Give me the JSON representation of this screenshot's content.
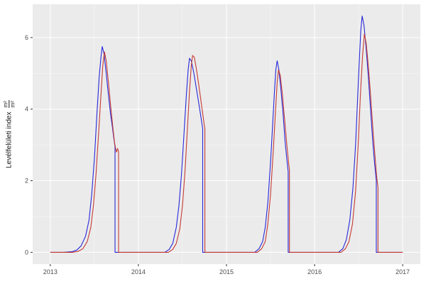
{
  "chart_data": {
    "type": "line",
    "title": "",
    "xlabel": "",
    "ylabel_text": "Levélfelületi index",
    "ylabel_frac_num": "m²",
    "ylabel_frac_den": "m²",
    "legend": "none",
    "grid": true,
    "xlim": [
      2012.8,
      2017.2
    ],
    "ylim": [
      -0.33,
      6.93
    ],
    "x_ticks": [
      2013,
      2014,
      2015,
      2016,
      2017
    ],
    "x_tick_labels": [
      "2013",
      "2014",
      "2015",
      "2016",
      "2017"
    ],
    "x_minor": [
      2013.5,
      2014.5,
      2015.5,
      2016.5
    ],
    "y_ticks": [
      0,
      2,
      4,
      6
    ],
    "y_tick_labels": [
      "0",
      "2",
      "4",
      "6"
    ],
    "y_minor": [
      1,
      3,
      5
    ],
    "colors": {
      "panel": "#ebebeb",
      "grid_major": "#ffffff",
      "grid_minor": "#f7f7f7",
      "tick_text": "#4d4d4d",
      "tick_mark": "#333333",
      "axis_title": "#1a1a1a",
      "background": "#ffffff"
    },
    "series": [
      {
        "name": "series-blue",
        "color": "#2727d8",
        "points": [
          [
            2013.0,
            0
          ],
          [
            2013.15,
            0
          ],
          [
            2013.25,
            0.02
          ],
          [
            2013.3,
            0.06
          ],
          [
            2013.35,
            0.18
          ],
          [
            2013.4,
            0.45
          ],
          [
            2013.44,
            0.9
          ],
          [
            2013.47,
            1.6
          ],
          [
            2013.5,
            2.6
          ],
          [
            2013.53,
            3.9
          ],
          [
            2013.555,
            4.9
          ],
          [
            2013.575,
            5.45
          ],
          [
            2013.59,
            5.75
          ],
          [
            2013.61,
            5.55
          ],
          [
            2013.635,
            5.0
          ],
          [
            2013.66,
            4.4
          ],
          [
            2013.685,
            3.85
          ],
          [
            2013.705,
            3.5
          ],
          [
            2013.72,
            3.2
          ],
          [
            2013.735,
            2.95
          ],
          [
            2013.735,
            0
          ],
          [
            2013.9,
            0
          ],
          [
            2014.1,
            0
          ],
          [
            2014.3,
            0
          ],
          [
            2014.35,
            0.08
          ],
          [
            2014.39,
            0.25
          ],
          [
            2014.43,
            0.7
          ],
          [
            2014.46,
            1.3
          ],
          [
            2014.49,
            2.2
          ],
          [
            2014.52,
            3.4
          ],
          [
            2014.545,
            4.4
          ],
          [
            2014.565,
            5.1
          ],
          [
            2014.58,
            5.42
          ],
          [
            2014.6,
            5.35
          ],
          [
            2014.63,
            5.0
          ],
          [
            2014.66,
            4.55
          ],
          [
            2014.69,
            4.1
          ],
          [
            2014.715,
            3.7
          ],
          [
            2014.73,
            3.45
          ],
          [
            2014.73,
            0
          ],
          [
            2014.9,
            0
          ],
          [
            2015.1,
            0
          ],
          [
            2015.32,
            0
          ],
          [
            2015.37,
            0.1
          ],
          [
            2015.41,
            0.3
          ],
          [
            2015.44,
            0.7
          ],
          [
            2015.47,
            1.4
          ],
          [
            2015.5,
            2.5
          ],
          [
            2015.525,
            3.6
          ],
          [
            2015.545,
            4.5
          ],
          [
            2015.56,
            5.1
          ],
          [
            2015.575,
            5.35
          ],
          [
            2015.595,
            5.1
          ],
          [
            2015.62,
            4.5
          ],
          [
            2015.645,
            3.8
          ],
          [
            2015.665,
            3.1
          ],
          [
            2015.685,
            2.6
          ],
          [
            2015.7,
            2.25
          ],
          [
            2015.7,
            0
          ],
          [
            2015.9,
            0
          ],
          [
            2016.1,
            0
          ],
          [
            2016.27,
            0
          ],
          [
            2016.32,
            0.1
          ],
          [
            2016.36,
            0.35
          ],
          [
            2016.4,
            0.9
          ],
          [
            2016.435,
            1.8
          ],
          [
            2016.465,
            3.0
          ],
          [
            2016.49,
            4.4
          ],
          [
            2016.51,
            5.5
          ],
          [
            2016.525,
            6.2
          ],
          [
            2016.54,
            6.6
          ],
          [
            2016.56,
            6.35
          ],
          [
            2016.585,
            5.7
          ],
          [
            2016.61,
            4.9
          ],
          [
            2016.635,
            4.0
          ],
          [
            2016.66,
            3.1
          ],
          [
            2016.68,
            2.5
          ],
          [
            2016.7,
            2.0
          ],
          [
            2016.7,
            0
          ],
          [
            2016.85,
            0
          ],
          [
            2017.0,
            0
          ]
        ]
      },
      {
        "name": "series-red",
        "color": "#c43a33",
        "points": [
          [
            2013.0,
            0
          ],
          [
            2013.25,
            0
          ],
          [
            2013.32,
            0.03
          ],
          [
            2013.37,
            0.1
          ],
          [
            2013.42,
            0.3
          ],
          [
            2013.46,
            0.7
          ],
          [
            2013.49,
            1.3
          ],
          [
            2013.52,
            2.2
          ],
          [
            2013.55,
            3.4
          ],
          [
            2013.575,
            4.4
          ],
          [
            2013.595,
            5.2
          ],
          [
            2013.615,
            5.6
          ],
          [
            2013.635,
            5.35
          ],
          [
            2013.66,
            4.75
          ],
          [
            2013.685,
            4.1
          ],
          [
            2013.71,
            3.5
          ],
          [
            2013.73,
            3.05
          ],
          [
            2013.75,
            2.8
          ],
          [
            2013.765,
            2.9
          ],
          [
            2013.775,
            2.8
          ],
          [
            2013.775,
            0
          ],
          [
            2013.9,
            0
          ],
          [
            2014.1,
            0
          ],
          [
            2014.34,
            0
          ],
          [
            2014.39,
            0.08
          ],
          [
            2014.43,
            0.25
          ],
          [
            2014.47,
            0.65
          ],
          [
            2014.5,
            1.3
          ],
          [
            2014.53,
            2.3
          ],
          [
            2014.555,
            3.4
          ],
          [
            2014.58,
            4.5
          ],
          [
            2014.6,
            5.2
          ],
          [
            2014.615,
            5.5
          ],
          [
            2014.635,
            5.45
          ],
          [
            2014.66,
            5.1
          ],
          [
            2014.69,
            4.6
          ],
          [
            2014.72,
            4.05
          ],
          [
            2014.745,
            3.6
          ],
          [
            2014.755,
            3.45
          ],
          [
            2014.755,
            0
          ],
          [
            2014.9,
            0
          ],
          [
            2015.1,
            0
          ],
          [
            2015.35,
            0
          ],
          [
            2015.4,
            0.1
          ],
          [
            2015.44,
            0.3
          ],
          [
            2015.47,
            0.8
          ],
          [
            2015.5,
            1.6
          ],
          [
            2015.53,
            2.8
          ],
          [
            2015.555,
            3.9
          ],
          [
            2015.575,
            4.75
          ],
          [
            2015.59,
            5.1
          ],
          [
            2015.61,
            4.95
          ],
          [
            2015.635,
            4.4
          ],
          [
            2015.66,
            3.7
          ],
          [
            2015.685,
            3.0
          ],
          [
            2015.705,
            2.5
          ],
          [
            2015.715,
            2.3
          ],
          [
            2015.715,
            0
          ],
          [
            2015.9,
            0
          ],
          [
            2016.1,
            0
          ],
          [
            2016.3,
            0
          ],
          [
            2016.35,
            0.1
          ],
          [
            2016.39,
            0.3
          ],
          [
            2016.43,
            0.8
          ],
          [
            2016.465,
            1.7
          ],
          [
            2016.495,
            3.0
          ],
          [
            2016.52,
            4.4
          ],
          [
            2016.545,
            5.5
          ],
          [
            2016.565,
            6.1
          ],
          [
            2016.585,
            5.85
          ],
          [
            2016.61,
            5.2
          ],
          [
            2016.635,
            4.4
          ],
          [
            2016.66,
            3.5
          ],
          [
            2016.685,
            2.7
          ],
          [
            2016.705,
            2.1
          ],
          [
            2016.72,
            1.8
          ],
          [
            2016.72,
            0
          ],
          [
            2016.85,
            0
          ],
          [
            2017.0,
            0
          ]
        ]
      }
    ]
  }
}
